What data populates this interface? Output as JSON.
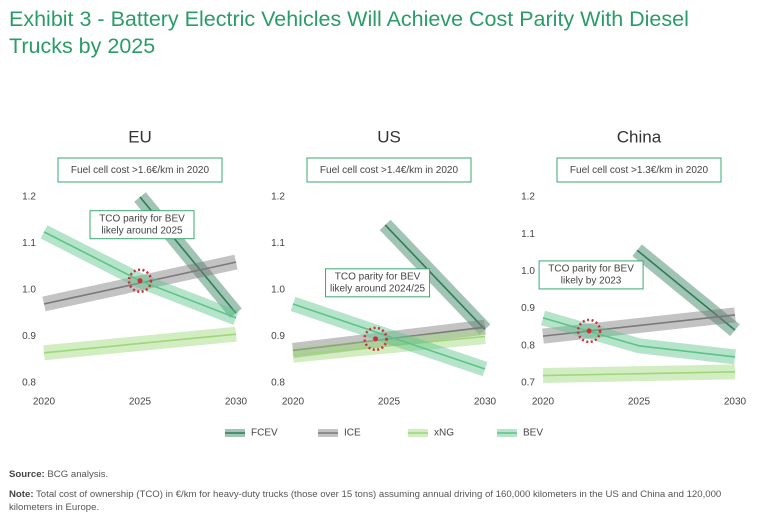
{
  "title": "Exhibit 3 - Battery Electric Vehicles Will Achieve Cost Parity With Diesel Trucks by 2025",
  "chart_data": [
    {
      "type": "line",
      "title": "EU",
      "annotation": "Fuel cell cost >1.6€/km in 2020",
      "parity_label": [
        "TCO parity for BEV",
        "likely around 2025"
      ],
      "parity": {
        "x": 2025,
        "y": 1.02
      },
      "xlim": [
        2020,
        2030
      ],
      "xticks": [
        2020,
        2025,
        2030
      ],
      "ylim": [
        0.8,
        1.2
      ],
      "yticks": [
        0.8,
        0.9,
        {
          "value": 1,
          "label": "1.0"
        },
        1.1,
        1.2
      ],
      "series": [
        {
          "name": "FCEV",
          "color": "#2e7d58",
          "x": [
            2025,
            2030
          ],
          "values": [
            1.2,
            0.95
          ]
        },
        {
          "name": "ICE",
          "color": "#7a7a7a",
          "x": [
            2020,
            2030
          ],
          "values": [
            0.97,
            1.06
          ]
        },
        {
          "name": "xNG",
          "color": "#9ed67a",
          "x": [
            2020,
            2030
          ],
          "values": [
            0.865,
            0.905
          ]
        },
        {
          "name": "BEV",
          "color": "#5cc48a",
          "x": [
            2020,
            2025,
            2030
          ],
          "values": [
            1.125,
            1.02,
            0.94
          ]
        }
      ]
    },
    {
      "type": "line",
      "title": "US",
      "annotation": "Fuel cell cost >1.4€/km in 2020",
      "parity_label": [
        "TCO parity for BEV",
        "likely around 2024/25"
      ],
      "parity": {
        "x": 2024.3,
        "y": 0.895
      },
      "xlim": [
        2020,
        2030
      ],
      "xticks": [
        2020,
        2025,
        2030
      ],
      "ylim": [
        0.8,
        1.2
      ],
      "yticks": [
        0.8,
        0.9,
        {
          "value": 1,
          "label": "1.0"
        },
        1.1,
        1.2
      ],
      "series": [
        {
          "name": "FCEV",
          "color": "#2e7d58",
          "x": [
            2024.8,
            2030
          ],
          "values": [
            1.14,
            0.915
          ]
        },
        {
          "name": "ICE",
          "color": "#7a7a7a",
          "x": [
            2020,
            2030
          ],
          "values": [
            0.87,
            0.92
          ]
        },
        {
          "name": "xNG",
          "color": "#9ed67a",
          "x": [
            2020,
            2030
          ],
          "values": [
            0.86,
            0.9
          ]
        },
        {
          "name": "BEV",
          "color": "#5cc48a",
          "x": [
            2020,
            2030
          ],
          "values": [
            0.97,
            0.83
          ]
        }
      ]
    },
    {
      "type": "line",
      "title": "China",
      "annotation": "Fuel cell cost >1.3€/km in 2020",
      "parity_label": [
        "TCO parity for BEV",
        "likely by 2023"
      ],
      "parity": {
        "x": 2022.4,
        "y": 0.84
      },
      "xlim": [
        2020,
        2030
      ],
      "xticks": [
        2020,
        2025,
        2030
      ],
      "ylim": [
        0.7,
        1.2
      ],
      "yticks": [
        0.7,
        0.8,
        0.9,
        {
          "value": 1,
          "label": "1.0"
        },
        1.1,
        1.2
      ],
      "series": [
        {
          "name": "FCEV",
          "color": "#2e7d58",
          "x": [
            2024.9,
            2030
          ],
          "values": [
            1.057,
            0.842
          ]
        },
        {
          "name": "ICE",
          "color": "#7a7a7a",
          "x": [
            2020,
            2030
          ],
          "values": [
            0.826,
            0.883
          ]
        },
        {
          "name": "xNG",
          "color": "#9ed67a",
          "x": [
            2020,
            2030
          ],
          "values": [
            0.72,
            0.73
          ]
        },
        {
          "name": "BEV",
          "color": "#5cc48a",
          "x": [
            2020,
            2025,
            2030
          ],
          "values": [
            0.875,
            0.8,
            0.77
          ]
        }
      ]
    }
  ],
  "source_label": "Source:",
  "source": "BCG analysis.",
  "note_label": "Note:",
  "note": "Total cost of ownership (TCO) in €/km for heavy-duty trucks (those over 15 tons) assuming annual driving of 160,000 kilometers in the US and China and 120,000 kilometers in Europe."
}
